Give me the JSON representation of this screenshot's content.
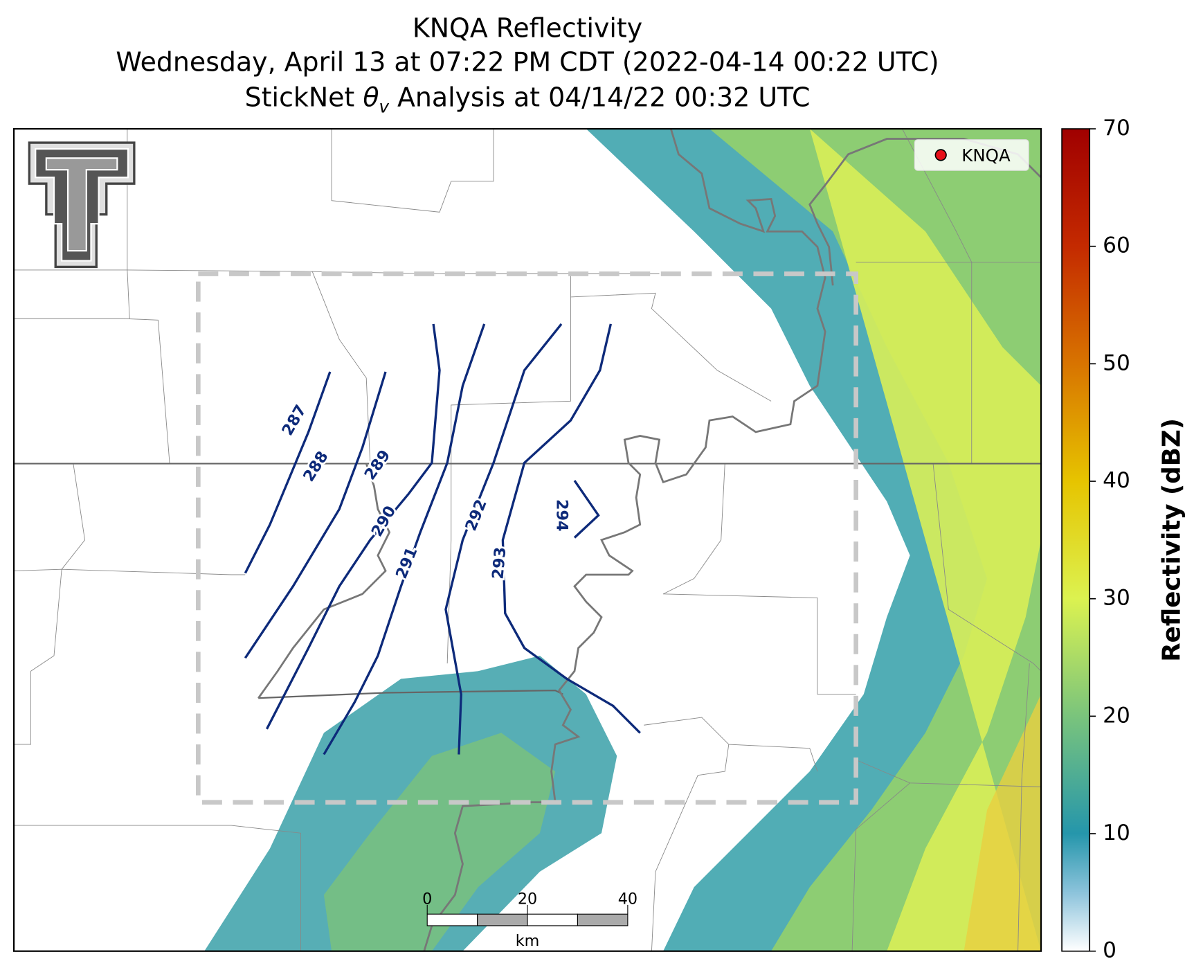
{
  "title": {
    "line1": "KNQA Reflectivity",
    "line2": "Wednesday, April 13 at 07:22 PM CDT (2022-04-14 00:22 UTC)",
    "line3": {
      "before": "StickNet ",
      "symbol": "θ",
      "subscript": "v",
      "after": " Analysis at 04/14/22 00:32 UTC"
    }
  },
  "legend": {
    "label": "KNQA"
  },
  "contours": [
    287,
    288,
    289,
    290,
    291,
    292,
    293,
    294
  ],
  "colorbar": {
    "label": "Reflectivity (dBZ)",
    "lim": [
      0,
      70
    ],
    "ticks": [
      0,
      10,
      20,
      30,
      40,
      50,
      60,
      70
    ]
  },
  "scale_bar": {
    "ticks": [
      0,
      20,
      40
    ],
    "unit": "km"
  }
}
